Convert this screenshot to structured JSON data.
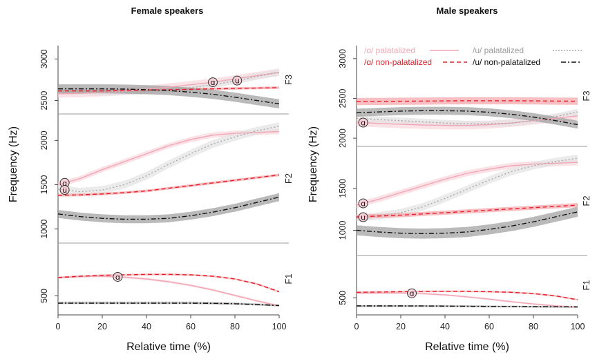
{
  "chart_data": [
    {
      "type": "line",
      "title": "Female speakers",
      "xlabel": "Relative time (%)",
      "ylabel": "Frequency (Hz)",
      "xlim": [
        0,
        100
      ],
      "x_ticks": [
        "0",
        "20",
        "40",
        "60",
        "80",
        "100"
      ],
      "formant_panels": [
        {
          "label": "F3",
          "ylim": [
            2380,
            3120
          ],
          "y_ticks": [
            2500,
            3000
          ],
          "x": [
            0,
            10,
            20,
            30,
            40,
            50,
            60,
            70,
            80,
            90,
            100
          ],
          "series": [
            {
              "key": "a_pal",
              "values": [
                2580,
                2585,
                2595,
                2610,
                2635,
                2660,
                2690,
                2720,
                2760,
                2800,
                2840
              ],
              "band": 90
            },
            {
              "key": "u_pal",
              "values": [
                2620,
                2605,
                2600,
                2605,
                2615,
                2630,
                2655,
                2690,
                2735,
                2790,
                2840
              ],
              "band": 80
            },
            {
              "key": "a_nonpal",
              "values": [
                2615,
                2615,
                2615,
                2620,
                2625,
                2630,
                2635,
                2640,
                2645,
                2650,
                2655
              ],
              "band": 30
            },
            {
              "key": "u_nonpal",
              "values": [
                2640,
                2640,
                2640,
                2638,
                2630,
                2620,
                2600,
                2575,
                2540,
                2500,
                2460
              ],
              "band": 110
            }
          ],
          "markers": [
            {
              "key": "a_pal",
              "symbol": "ɑ",
              "x": 70
            },
            {
              "key": "u_pal",
              "symbol": "u",
              "x": 81
            }
          ]
        },
        {
          "label": "F2",
          "ylim": [
            880,
            2260
          ],
          "y_ticks": [
            1000,
            1500,
            2000
          ],
          "x": [
            0,
            10,
            20,
            30,
            40,
            50,
            60,
            70,
            80,
            90,
            100
          ],
          "series": [
            {
              "key": "a_pal",
              "values": [
                1500,
                1570,
                1670,
                1760,
                1850,
                1940,
                2010,
                2060,
                2080,
                2090,
                2100
              ],
              "band": 60
            },
            {
              "key": "u_pal",
              "values": [
                1450,
                1420,
                1440,
                1500,
                1600,
                1730,
                1850,
                1960,
                2040,
                2110,
                2160
              ],
              "band": 90
            },
            {
              "key": "a_nonpal",
              "values": [
                1380,
                1385,
                1395,
                1410,
                1430,
                1460,
                1490,
                1520,
                1550,
                1580,
                1610
              ],
              "band": 30
            },
            {
              "key": "u_nonpal",
              "values": [
                1170,
                1140,
                1120,
                1110,
                1110,
                1120,
                1150,
                1190,
                1240,
                1300,
                1360
              ],
              "band": 90
            }
          ],
          "markers": [
            {
              "key": "a_pal",
              "symbol": "ɑ",
              "x": 3
            },
            {
              "key": "u_pal",
              "symbol": "u",
              "x": 3
            }
          ]
        },
        {
          "label": "F1",
          "ylim": [
            330,
            1040
          ],
          "y_ticks": [
            500
          ],
          "x": [
            0,
            10,
            20,
            30,
            40,
            50,
            60,
            70,
            80,
            90,
            100
          ],
          "series": [
            {
              "key": "a_pal",
              "values": [
                700,
                710,
                715,
                705,
                685,
                655,
                615,
                565,
                505,
                445,
                390
              ],
              "band": 25
            },
            {
              "key": "u_pal",
              "values": [
                430,
                430,
                430,
                430,
                430,
                430,
                430,
                425,
                420,
                410,
                395
              ],
              "band": 20
            },
            {
              "key": "a_nonpal",
              "values": [
                700,
                715,
                725,
                730,
                735,
                735,
                730,
                715,
                685,
                630,
                545
              ],
              "band": 20
            },
            {
              "key": "u_nonpal",
              "values": [
                420,
                420,
                420,
                420,
                420,
                420,
                420,
                418,
                414,
                405,
                395
              ],
              "band": 20
            }
          ],
          "markers": [
            {
              "key": "a_pal",
              "symbol": "ɑ",
              "x": 27
            }
          ]
        }
      ]
    },
    {
      "type": "line",
      "title": "Male speakers",
      "xlabel": "Relative time (%)",
      "ylabel": "Frequency (Hz)",
      "xlim": [
        0,
        100
      ],
      "x_ticks": [
        "0",
        "20",
        "40",
        "60",
        "80",
        "100"
      ],
      "formant_panels": [
        {
          "label": "F3",
          "ylim": [
            1940,
            3120
          ],
          "y_ticks": [
            2000,
            2500,
            3000
          ],
          "x": [
            0,
            10,
            20,
            30,
            40,
            50,
            60,
            70,
            80,
            90,
            100
          ],
          "series": [
            {
              "key": "a_pal",
              "values": [
                2200,
                2185,
                2175,
                2165,
                2160,
                2160,
                2170,
                2190,
                2220,
                2250,
                2280
              ],
              "band": 100
            },
            {
              "key": "u_pal",
              "values": [
                2250,
                2235,
                2220,
                2205,
                2190,
                2180,
                2180,
                2190,
                2220,
                2270,
                2330
              ],
              "band": 80
            },
            {
              "key": "a_nonpal",
              "values": [
                2460,
                2462,
                2464,
                2466,
                2468,
                2470,
                2470,
                2470,
                2468,
                2466,
                2464
              ],
              "band": 90
            },
            {
              "key": "u_nonpal",
              "values": [
                2320,
                2330,
                2340,
                2345,
                2345,
                2340,
                2325,
                2300,
                2265,
                2220,
                2170
              ],
              "band": 100
            }
          ],
          "markers": [
            {
              "key": "a_pal",
              "symbol": "ɑ",
              "x": 3
            }
          ]
        },
        {
          "label": "F2",
          "ylim": [
            740,
            1960
          ],
          "y_ticks": [
            1000,
            1500
          ],
          "x": [
            0,
            10,
            20,
            30,
            40,
            50,
            60,
            70,
            80,
            90,
            100
          ],
          "series": [
            {
              "key": "a_pal",
              "values": [
                1300,
                1370,
                1450,
                1530,
                1610,
                1680,
                1730,
                1770,
                1790,
                1800,
                1810
              ],
              "band": 70
            },
            {
              "key": "u_pal",
              "values": [
                1150,
                1170,
                1210,
                1280,
                1380,
                1490,
                1600,
                1700,
                1770,
                1820,
                1860
              ],
              "band": 90
            },
            {
              "key": "a_nonpal",
              "values": [
                1160,
                1170,
                1180,
                1195,
                1210,
                1225,
                1240,
                1255,
                1270,
                1285,
                1300
              ],
              "band": 50
            },
            {
              "key": "u_nonpal",
              "values": [
                1000,
                980,
                965,
                960,
                965,
                980,
                1010,
                1050,
                1100,
                1160,
                1220
              ],
              "band": 120
            }
          ],
          "markers": [
            {
              "key": "a_pal",
              "symbol": "ɑ",
              "x": 3
            },
            {
              "key": "u_pal",
              "symbol": "u",
              "x": 3
            }
          ]
        },
        {
          "label": "F1",
          "ylim": [
            290,
            1100
          ],
          "y_ticks": [
            500
          ],
          "x": [
            0,
            10,
            20,
            30,
            40,
            50,
            60,
            70,
            80,
            90,
            100
          ],
          "series": [
            {
              "key": "a_pal",
              "values": [
                570,
                575,
                575,
                565,
                545,
                515,
                480,
                440,
                405,
                375,
                355
              ],
              "band": 30
            },
            {
              "key": "u_pal",
              "values": [
                370,
                370,
                370,
                370,
                368,
                366,
                364,
                362,
                360,
                358,
                355
              ],
              "band": 25
            },
            {
              "key": "a_nonpal",
              "values": [
                585,
                590,
                595,
                598,
                600,
                600,
                595,
                585,
                565,
                530,
                470
              ],
              "band": 25
            },
            {
              "key": "u_nonpal",
              "values": [
                375,
                375,
                375,
                374,
                372,
                370,
                368,
                366,
                364,
                362,
                360
              ],
              "band": 25
            }
          ],
          "markers": [
            {
              "key": "a_pal",
              "symbol": "ɑ",
              "x": 25
            }
          ]
        }
      ],
      "legend": {
        "position": "top",
        "entries": [
          {
            "key": "a_pal",
            "label": "/ɑ/ palatalized"
          },
          {
            "key": "u_pal",
            "label": "/u/ palatalized"
          },
          {
            "key": "a_nonpal",
            "label": "/ɑ/ non-palatalized"
          },
          {
            "key": "u_nonpal",
            "label": "/u/ non-palatalized"
          }
        ]
      }
    }
  ],
  "series_style": {
    "a_pal": {
      "color": "#f0a6b4",
      "band": "#f9d6dd",
      "dash": "solid"
    },
    "u_pal": {
      "color": "#a8a8a8",
      "band": "#e2e2e2",
      "dash": "dot"
    },
    "a_nonpal": {
      "color": "#e0202c",
      "band": "#f6a3a6",
      "dash": "dash"
    },
    "u_nonpal": {
      "color": "#111111",
      "band": "#9c9c9c",
      "dash": "dashdot"
    }
  }
}
